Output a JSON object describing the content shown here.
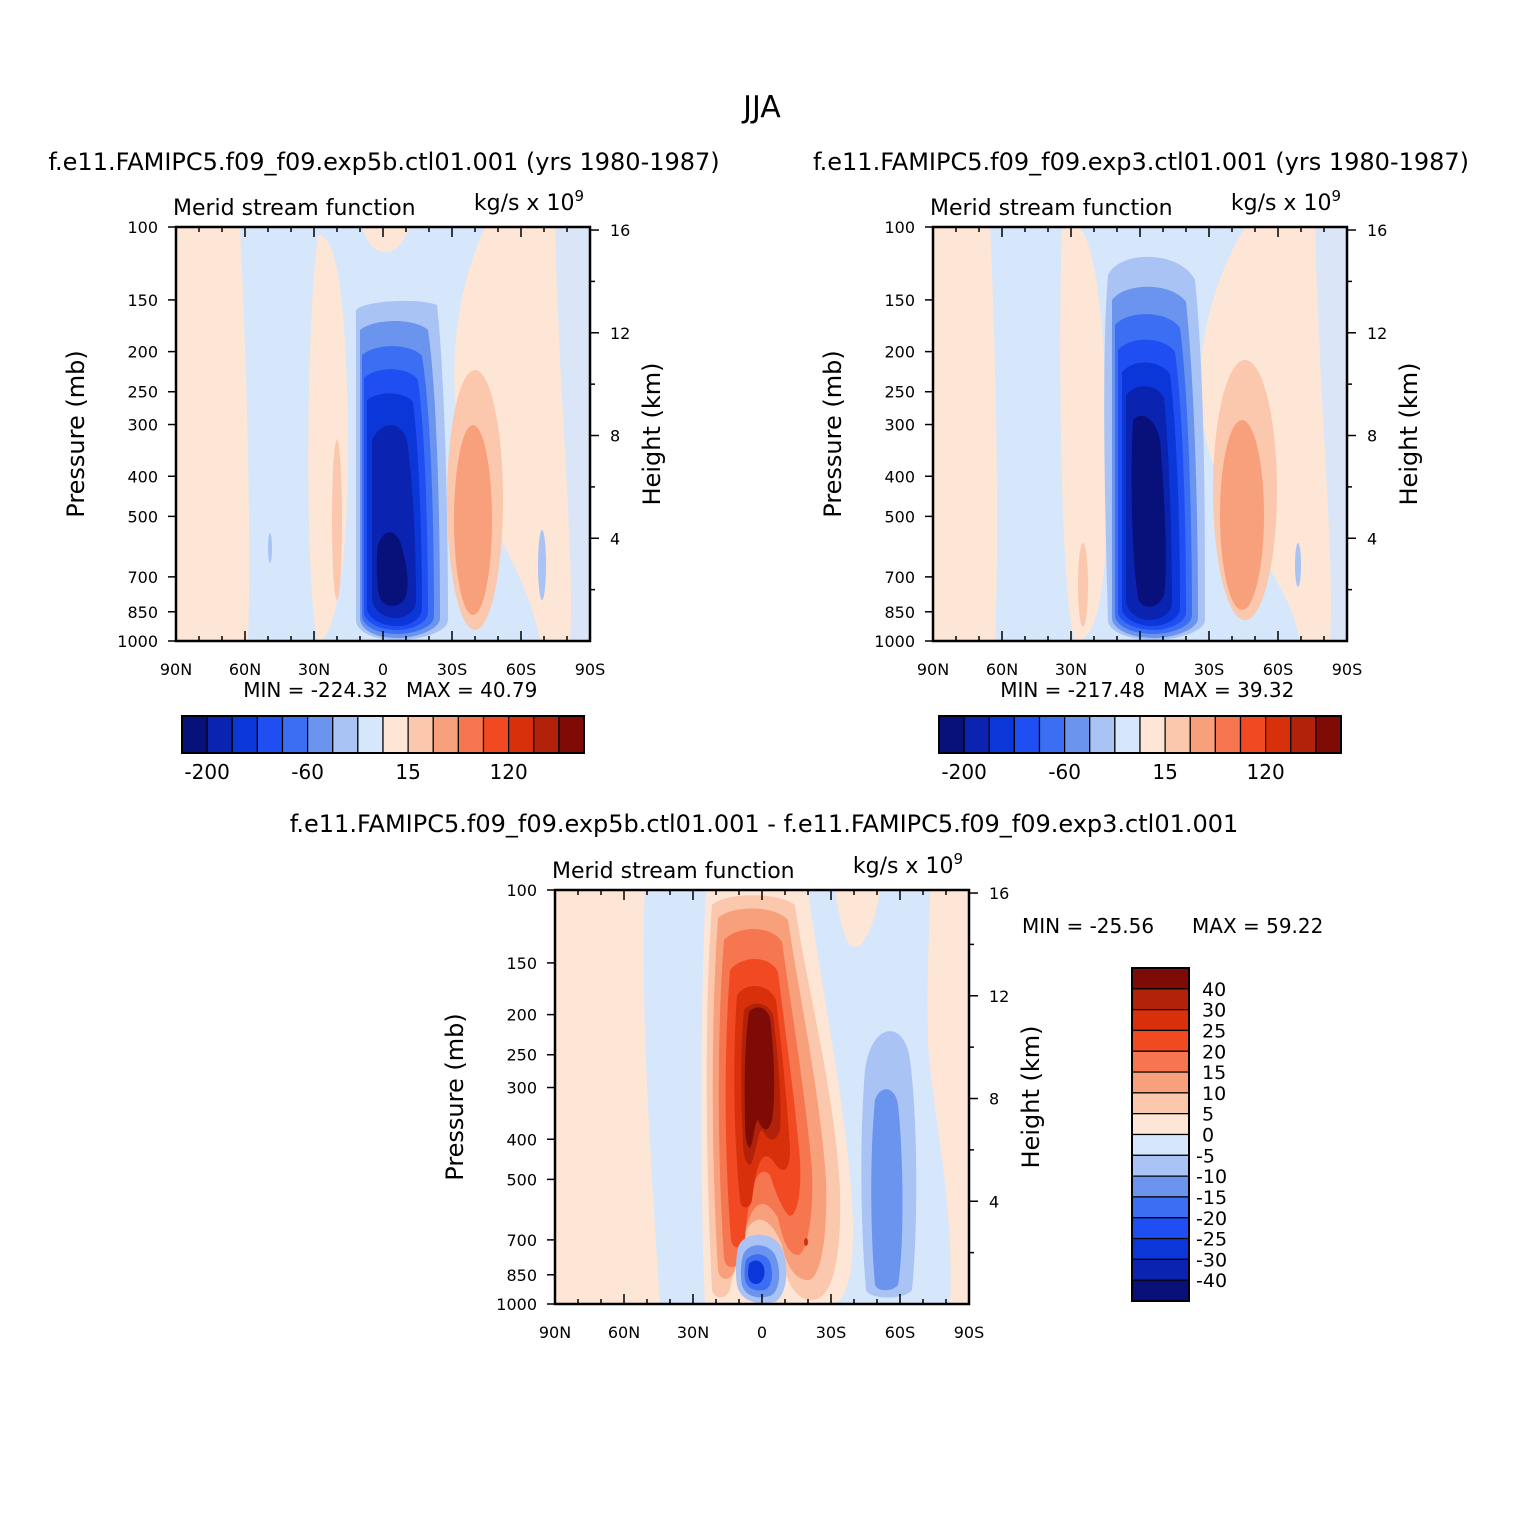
{
  "figure_title": "JJA",
  "panels": [
    {
      "case_title": "f.e11.FAMIPC5.f09_f09.exp5b.ctl01.001 (yrs 1980-1987)",
      "variable": "Merid stream function",
      "units": "kg/s x 10",
      "units_exp": "9",
      "ylabel": "Pressure (mb)",
      "ylabel_right": "Height (km)",
      "min_label": "MIN = -224.32",
      "max_label": "MAX = 40.79"
    },
    {
      "case_title": "f.e11.FAMIPC5.f09_f09.exp3.ctl01.001 (yrs 1980-1987)",
      "variable": "Merid stream function",
      "units": "kg/s x 10",
      "units_exp": "9",
      "ylabel": "Pressure (mb)",
      "ylabel_right": "Height (km)",
      "min_label": "MIN = -217.48",
      "max_label": "MAX = 39.32"
    },
    {
      "case_title": "f.e11.FAMIPC5.f09_f09.exp5b.ctl01.001 - f.e11.FAMIPC5.f09_f09.exp3.ctl01.001",
      "variable": "Merid stream function",
      "units": "kg/s x 10",
      "units_exp": "9",
      "ylabel": "Pressure (mb)",
      "ylabel_right": "Height (km)",
      "min_label": "MIN = -25.56",
      "max_label": "MAX = 59.22"
    }
  ],
  "colorbar_top": {
    "colors": [
      "#08107a",
      "#0a23b0",
      "#0b36d8",
      "#1f4ef2",
      "#3b6ef2",
      "#6b94ef",
      "#a9c3f5",
      "#d6e6fb",
      "#fde6d6",
      "#fbc7ad",
      "#f8a07c",
      "#f67650",
      "#f14a22",
      "#d8300b",
      "#b2220a",
      "#7e0b06"
    ],
    "tick_labels": [
      "-200",
      "-60",
      "15",
      "120"
    ]
  },
  "colorbar_diff": {
    "colors": [
      "#7e0b06",
      "#b2220a",
      "#d8300b",
      "#f14a22",
      "#f67650",
      "#f8a07c",
      "#fbc7ad",
      "#fde6d6",
      "#d6e6fb",
      "#a9c3f5",
      "#6b94ef",
      "#3b6ef2",
      "#1f4ef2",
      "#0b36d8",
      "#0a23b0",
      "#08107a"
    ],
    "levels": [
      "40",
      "30",
      "25",
      "20",
      "15",
      "10",
      "5",
      "0",
      "-5",
      "-10",
      "-15",
      "-20",
      "-25",
      "-30",
      "-40"
    ]
  },
  "chart_data": [
    {
      "type": "heatmap",
      "title": "Merid stream function",
      "x_ticks": [
        "90N",
        "60N",
        "30N",
        "0",
        "30S",
        "60S",
        "90S"
      ],
      "y_ticks": [
        100,
        150,
        200,
        250,
        300,
        400,
        500,
        700,
        850,
        1000
      ],
      "y_right_ticks": [
        4,
        8,
        12,
        16
      ],
      "xlim": [
        "90N",
        "90S"
      ],
      "ylim": [
        1000,
        100
      ],
      "ylabel": "Pressure (mb)",
      "ylabel_right": "Height (km)",
      "min": -224.32,
      "max": 40.79
    },
    {
      "type": "heatmap",
      "title": "Merid stream function",
      "x_ticks": [
        "90N",
        "60N",
        "30N",
        "0",
        "30S",
        "60S",
        "90S"
      ],
      "y_ticks": [
        100,
        150,
        200,
        250,
        300,
        400,
        500,
        700,
        850,
        1000
      ],
      "y_right_ticks": [
        4,
        8,
        12,
        16
      ],
      "xlim": [
        "90N",
        "90S"
      ],
      "ylim": [
        1000,
        100
      ],
      "ylabel": "Pressure (mb)",
      "ylabel_right": "Height (km)",
      "min": -217.48,
      "max": 39.32
    },
    {
      "type": "heatmap",
      "title": "Merid stream function",
      "x_ticks": [
        "90N",
        "60N",
        "30N",
        "0",
        "30S",
        "60S",
        "90S"
      ],
      "y_ticks": [
        100,
        150,
        200,
        250,
        300,
        400,
        500,
        700,
        850,
        1000
      ],
      "y_right_ticks": [
        4,
        8,
        12,
        16
      ],
      "xlim": [
        "90N",
        "90S"
      ],
      "ylim": [
        1000,
        100
      ],
      "ylabel": "Pressure (mb)",
      "ylabel_right": "Height (km)",
      "min": -25.56,
      "max": 59.22
    }
  ]
}
